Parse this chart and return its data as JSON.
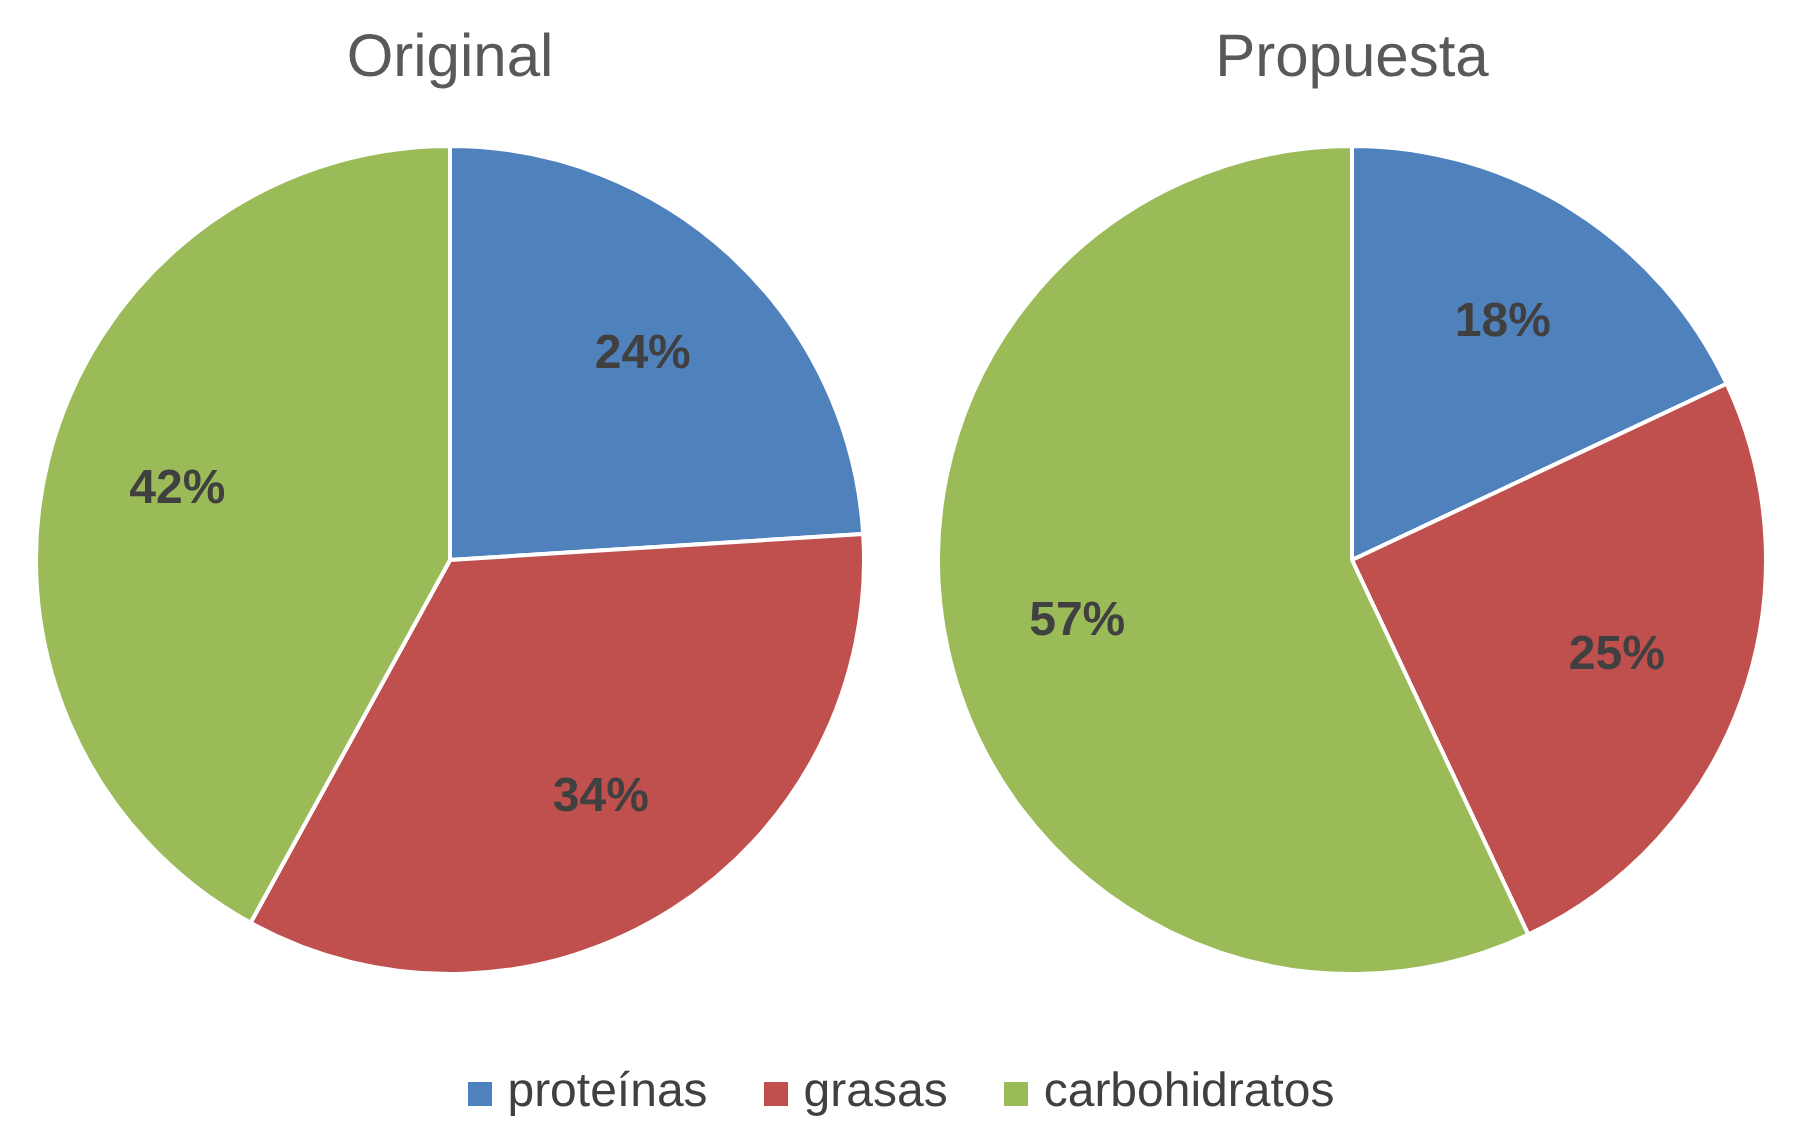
{
  "chart_data": [
    {
      "type": "pie",
      "title": "Original",
      "categories": [
        "proteínas",
        "grasas",
        "carbohidratos"
      ],
      "values": [
        24,
        34,
        42
      ],
      "value_labels": [
        "24%",
        "34%",
        "42%"
      ],
      "colors": [
        "#4f81bd",
        "#c0504d",
        "#9bbb59"
      ],
      "legend": "bottom"
    },
    {
      "type": "pie",
      "title": "Propuesta",
      "categories": [
        null,
        null,
        null
      ],
      "values": [
        18,
        25,
        57
      ],
      "value_labels": [
        "18%",
        "25%",
        "57%"
      ],
      "colors": [
        "#4f81bd",
        "#c0504d",
        "#9bbb59"
      ]
    }
  ]
}
